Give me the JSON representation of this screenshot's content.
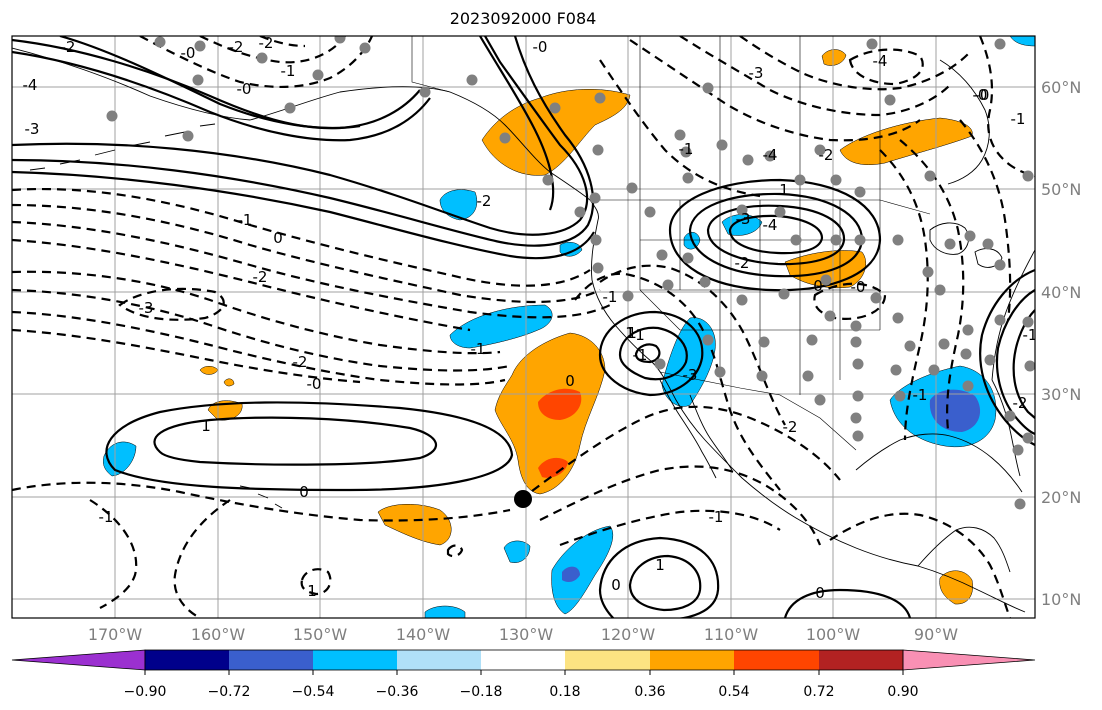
{
  "title": "2023092000 F084",
  "lon_ticks": [
    "170°W",
    "160°W",
    "150°W",
    "140°W",
    "130°W",
    "120°W",
    "110°W",
    "100°W",
    "90°W"
  ],
  "lat_ticks": [
    "60°N",
    "50°N",
    "40°N",
    "30°N",
    "20°N",
    "10°N"
  ],
  "colorbar": {
    "labels": [
      "−0.90",
      "−0.72",
      "−0.54",
      "−0.36",
      "−0.18",
      "0.18",
      "0.36",
      "0.54",
      "0.72",
      "0.90"
    ],
    "colors": [
      "#9b30d0",
      "#00008b",
      "#3a5fcd",
      "#00bfff",
      "#b0e0f8",
      "#ffffff",
      "#fce382",
      "#ffa500",
      "#ff4500",
      "#b22222",
      "#f990b4"
    ]
  },
  "fill_colors": {
    "orange": "#ffa500",
    "red": "#ff4500",
    "cyan": "#00bfff",
    "blue": "#3a5fcd"
  },
  "contour_labels": [
    {
      "text": "-2"
    },
    {
      "text": "-0"
    },
    {
      "text": "-2"
    },
    {
      "text": "-2"
    },
    {
      "text": "-1"
    },
    {
      "text": "-0"
    },
    {
      "text": "-4"
    },
    {
      "text": "-3"
    },
    {
      "text": "-1"
    },
    {
      "text": "0"
    },
    {
      "text": "-2"
    },
    {
      "text": "-3"
    },
    {
      "text": "-2"
    },
    {
      "text": "-0"
    },
    {
      "text": "1"
    },
    {
      "text": "0"
    },
    {
      "text": "-1"
    },
    {
      "text": "1"
    },
    {
      "text": "0"
    },
    {
      "text": "-1"
    },
    {
      "text": "-1"
    },
    {
      "text": "-2"
    },
    {
      "text": "-0"
    },
    {
      "text": "1"
    },
    {
      "text": "-1"
    },
    {
      "text": "-3"
    },
    {
      "text": "1"
    },
    {
      "text": "-3"
    },
    {
      "text": "-4"
    },
    {
      "text": "-2"
    },
    {
      "text": "-4"
    },
    {
      "text": "-0"
    },
    {
      "text": "-1"
    },
    {
      "text": "-3"
    },
    {
      "text": "-4"
    },
    {
      "text": "-2"
    },
    {
      "text": "0"
    },
    {
      "text": "-0"
    },
    {
      "text": "-2"
    },
    {
      "text": "1"
    },
    {
      "text": "-1"
    },
    {
      "text": "-1"
    },
    {
      "text": "1"
    },
    {
      "text": "0"
    },
    {
      "text": "0"
    },
    {
      "text": "-0"
    },
    {
      "text": "1"
    },
    {
      "text": "-2"
    },
    {
      "text": "-1"
    },
    {
      "text": "-1"
    }
  ]
}
